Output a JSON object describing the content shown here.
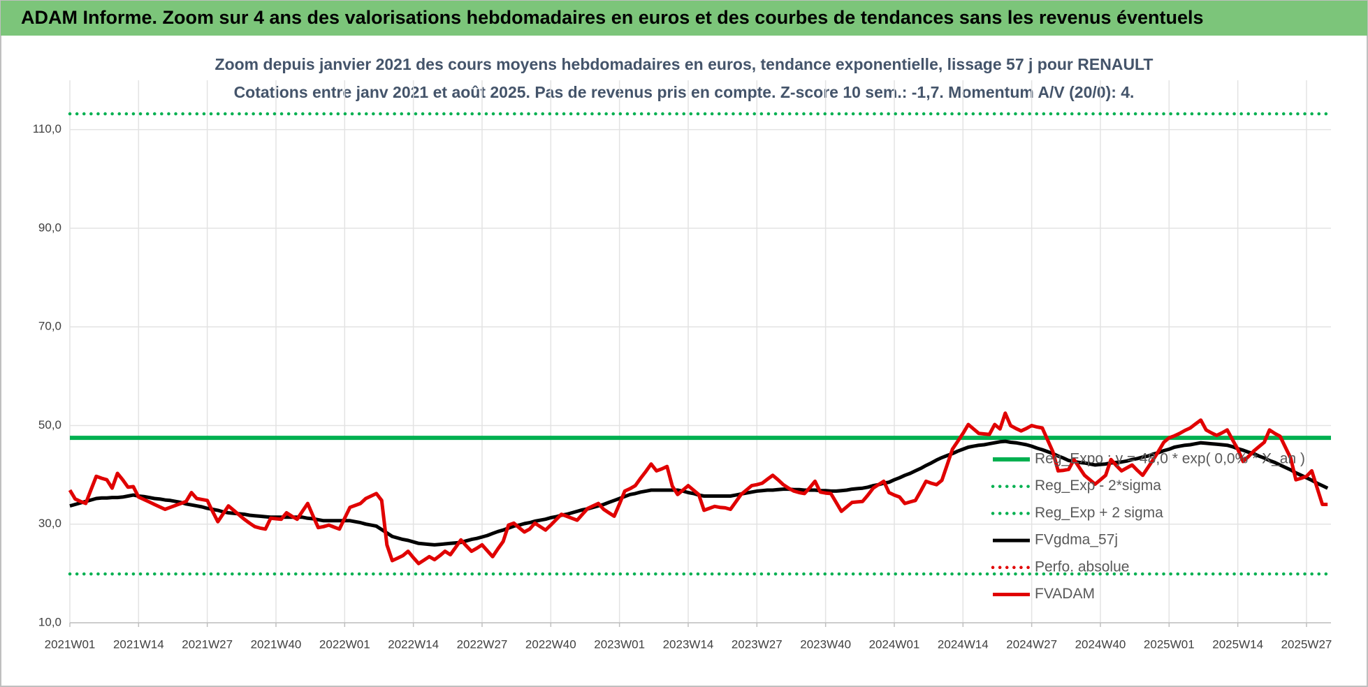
{
  "chart_data": {
    "type": "line",
    "header": "ADAM Informe. Zoom sur 4 ans des valorisations hebdomadaires en euros et des courbes de tendances sans les revenus éventuels",
    "title": "Zoom depuis janvier 2021 des cours moyens hebdomadaires en euros, tendance exponentielle, lissage 57 j pour RENAULT",
    "subtitle": "Cotations entre janv 2021 et août 2025.  Pas de revenus pris en compte. Z-score 10 sem.: -1,7. Momentum A/V (20/0): 4.",
    "ylim": [
      10,
      120
    ],
    "yticks": [
      {
        "value": 10,
        "label": "10,0"
      },
      {
        "value": 30,
        "label": "30,0"
      },
      {
        "value": 50,
        "label": "50,0"
      },
      {
        "value": 70,
        "label": "70,0"
      },
      {
        "value": 90,
        "label": "90,0"
      },
      {
        "value": 110,
        "label": "110,0"
      }
    ],
    "grid": true,
    "legend": "right",
    "categories": [
      "2021W01",
      null,
      null,
      null,
      null,
      null,
      null,
      null,
      null,
      null,
      null,
      null,
      null,
      "2021W14",
      null,
      null,
      null,
      null,
      null,
      null,
      null,
      null,
      null,
      null,
      null,
      null,
      "2021W27",
      null,
      null,
      null,
      null,
      null,
      null,
      null,
      null,
      null,
      null,
      null,
      null,
      "2021W40",
      null,
      null,
      null,
      null,
      null,
      null,
      null,
      null,
      null,
      null,
      null,
      null,
      "2022W01",
      null,
      null,
      null,
      null,
      null,
      null,
      null,
      null,
      null,
      null,
      null,
      null,
      "2022W14",
      null,
      null,
      null,
      null,
      null,
      null,
      null,
      null,
      null,
      null,
      null,
      null,
      "2022W27",
      null,
      null,
      null,
      null,
      null,
      null,
      null,
      null,
      null,
      null,
      null,
      null,
      "2022W40",
      null,
      null,
      null,
      null,
      null,
      null,
      null,
      null,
      null,
      null,
      null,
      null,
      "2023W01",
      null,
      null,
      null,
      null,
      null,
      null,
      null,
      null,
      null,
      null,
      null,
      null,
      "2023W14",
      null,
      null,
      null,
      null,
      null,
      null,
      null,
      null,
      null,
      null,
      null,
      null,
      "2023W27",
      null,
      null,
      null,
      null,
      null,
      null,
      null,
      null,
      null,
      null,
      null,
      null,
      "2023W40",
      null,
      null,
      null,
      null,
      null,
      null,
      null,
      null,
      null,
      null,
      null,
      null,
      "2024W01",
      null,
      null,
      null,
      null,
      null,
      null,
      null,
      null,
      null,
      null,
      null,
      null,
      "2024W14",
      null,
      null,
      null,
      null,
      null,
      null,
      null,
      null,
      null,
      null,
      null,
      null,
      "2024W27",
      null,
      null,
      null,
      null,
      null,
      null,
      null,
      null,
      null,
      null,
      null,
      null,
      "2024W40",
      null,
      null,
      null,
      null,
      null,
      null,
      null,
      null,
      null,
      null,
      null,
      null,
      "2025W01",
      null,
      null,
      null,
      null,
      null,
      null,
      null,
      null,
      null,
      null,
      null,
      null,
      "2025W14",
      null,
      null,
      null,
      null,
      null,
      null,
      null,
      null,
      null,
      null,
      null,
      null,
      "2025W27",
      null,
      null,
      null,
      null
    ],
    "series": [
      {
        "name": "Reg_Expo : y = 48,0 * exp( 0,0% * X_an )",
        "color": "#00b050",
        "style": "solid",
        "value": 47.5
      },
      {
        "name": "Reg_Exp - 2*sigma",
        "color": "#00b050",
        "style": "dotted",
        "value": 19.9
      },
      {
        "name": "Reg_Exp + 2 sigma",
        "color": "#00b050",
        "style": "dotted",
        "value": 113.2
      },
      {
        "name": "FVgdma_57j",
        "color": "#000000",
        "style": "solid",
        "values": [
          33.7,
          34.0,
          34.3,
          34.6,
          34.9,
          35.2,
          35.3,
          35.3,
          35.4,
          35.4,
          35.5,
          35.7,
          35.9,
          35.7,
          35.6,
          35.4,
          35.2,
          35.1,
          34.9,
          34.8,
          34.6,
          34.4,
          34.1,
          33.9,
          33.7,
          33.5,
          33.2,
          33.0,
          32.8,
          32.5,
          32.3,
          32.2,
          32.1,
          32.0,
          31.8,
          31.7,
          31.6,
          31.5,
          31.4,
          31.4,
          31.4,
          31.4,
          31.4,
          31.4,
          31.4,
          31.2,
          31.1,
          30.9,
          30.7,
          30.7,
          30.7,
          30.7,
          30.7,
          30.7,
          30.5,
          30.3,
          30.0,
          29.8,
          29.6,
          28.9,
          28.2,
          27.5,
          27.2,
          26.9,
          26.7,
          26.4,
          26.1,
          26.0,
          25.9,
          25.8,
          25.9,
          26.0,
          26.1,
          26.2,
          26.3,
          26.6,
          26.9,
          27.1,
          27.4,
          27.7,
          28.1,
          28.5,
          28.8,
          29.2,
          29.6,
          29.8,
          30.1,
          30.3,
          30.6,
          30.8,
          31.0,
          31.3,
          31.5,
          31.8,
          32.0,
          32.3,
          32.6,
          32.9,
          33.1,
          33.4,
          33.7,
          34.0,
          34.4,
          34.8,
          35.2,
          35.6,
          36.0,
          36.2,
          36.5,
          36.7,
          36.9,
          36.9,
          36.9,
          36.9,
          36.9,
          36.9,
          36.7,
          36.4,
          36.2,
          35.9,
          35.7,
          35.7,
          35.7,
          35.7,
          35.7,
          35.7,
          35.9,
          36.1,
          36.3,
          36.5,
          36.7,
          36.8,
          36.9,
          36.9,
          37.0,
          37.1,
          37.1,
          37.0,
          37.0,
          36.9,
          36.9,
          36.9,
          36.8,
          36.8,
          36.7,
          36.7,
          36.8,
          36.9,
          37.1,
          37.2,
          37.3,
          37.5,
          37.8,
          38.0,
          38.3,
          38.5,
          39.0,
          39.4,
          39.9,
          40.3,
          40.8,
          41.3,
          41.9,
          42.4,
          43.0,
          43.5,
          43.9,
          44.3,
          44.8,
          45.2,
          45.6,
          45.8,
          46.0,
          46.1,
          46.3,
          46.5,
          46.7,
          46.8,
          46.6,
          46.5,
          46.3,
          46.1,
          45.8,
          45.4,
          45.1,
          44.7,
          44.3,
          43.8,
          43.4,
          42.9,
          42.7,
          42.5,
          42.4,
          42.2,
          42.0,
          42.1,
          42.2,
          42.4,
          42.5,
          42.6,
          42.8,
          43.1,
          43.3,
          43.6,
          43.8,
          44.2,
          44.5,
          44.9,
          45.2,
          45.6,
          45.8,
          46.0,
          46.1,
          46.3,
          46.5,
          46.4,
          46.3,
          46.2,
          46.1,
          46.0,
          45.7,
          45.3,
          45.0,
          44.6,
          44.3,
          43.8,
          43.4,
          42.9,
          42.5,
          42.0,
          41.5,
          41.0,
          40.4,
          39.9,
          39.4,
          38.9,
          38.3,
          37.8,
          37.3
        ]
      },
      {
        "name": "Perfo. absolue",
        "color": "#e00000",
        "style": "dotted"
      },
      {
        "name": "FVADAM",
        "color": "#e00000",
        "style": "solid",
        "values": [
          36.9,
          35.1,
          34.6,
          34.2,
          37.0,
          39.7,
          39.3,
          39.0,
          37.3,
          40.3,
          39.0,
          37.5,
          37.6,
          35.5,
          35.0,
          34.5,
          34.0,
          33.5,
          33.0,
          33.4,
          33.8,
          34.2,
          34.6,
          36.4,
          35.2,
          35.0,
          34.8,
          32.6,
          30.5,
          32.1,
          33.7,
          32.8,
          31.9,
          31.0,
          30.2,
          29.5,
          29.2,
          29.0,
          31.2,
          31.1,
          31.0,
          32.3,
          31.6,
          31.0,
          32.6,
          34.2,
          31.7,
          29.3,
          29.5,
          29.8,
          29.4,
          29.0,
          31.2,
          33.4,
          33.8,
          34.2,
          35.2,
          35.7,
          36.2,
          34.8,
          25.8,
          22.6,
          23.1,
          23.6,
          24.5,
          23.2,
          22.0,
          22.7,
          23.4,
          22.8,
          23.6,
          24.5,
          23.8,
          25.3,
          26.8,
          25.6,
          24.5,
          25.1,
          25.8,
          24.6,
          23.4,
          25.0,
          26.5,
          29.8,
          30.2,
          29.3,
          28.4,
          29.0,
          30.2,
          29.5,
          28.8,
          29.8,
          30.9,
          32.0,
          31.6,
          31.2,
          30.8,
          32.0,
          33.2,
          33.7,
          34.2,
          33.0,
          32.3,
          31.6,
          34.1,
          36.7,
          37.2,
          37.8,
          39.3,
          40.7,
          42.2,
          40.8,
          41.2,
          41.7,
          37.7,
          36.0,
          36.9,
          37.8,
          36.9,
          36.0,
          32.8,
          33.2,
          33.6,
          33.4,
          33.3,
          33.0,
          34.5,
          36.0,
          36.9,
          37.8,
          38.0,
          38.3,
          39.1,
          39.9,
          39.0,
          38.0,
          37.3,
          36.7,
          36.4,
          36.2,
          37.4,
          38.7,
          36.5,
          36.3,
          36.2,
          34.4,
          32.6,
          33.5,
          34.4,
          34.5,
          34.6,
          35.9,
          37.3,
          38.0,
          38.7,
          36.4,
          35.9,
          35.5,
          34.2,
          34.5,
          34.8,
          36.7,
          38.7,
          38.3,
          38.0,
          38.9,
          42.0,
          45.2,
          46.8,
          48.4,
          50.2,
          49.3,
          48.4,
          48.3,
          48.2,
          50.2,
          49.3,
          52.5,
          50.0,
          49.4,
          48.9,
          49.4,
          50.0,
          49.7,
          49.5,
          47.1,
          44.7,
          40.8,
          40.9,
          41.1,
          43.1,
          41.5,
          39.9,
          39.0,
          38.1,
          39.0,
          39.9,
          43.1,
          41.9,
          40.8,
          41.4,
          42.0,
          40.9,
          39.9,
          41.5,
          43.1,
          44.8,
          46.6,
          47.5,
          47.9,
          48.4,
          49.0,
          49.5,
          50.3,
          51.1,
          49.1,
          48.5,
          48.0,
          48.5,
          49.1,
          47.1,
          45.2,
          42.7,
          43.7,
          44.8,
          45.7,
          46.6,
          49.1,
          48.4,
          47.8,
          45.6,
          43.4,
          39.0,
          39.3,
          39.7,
          40.8,
          37.4,
          34.0,
          34.0
        ]
      }
    ]
  }
}
